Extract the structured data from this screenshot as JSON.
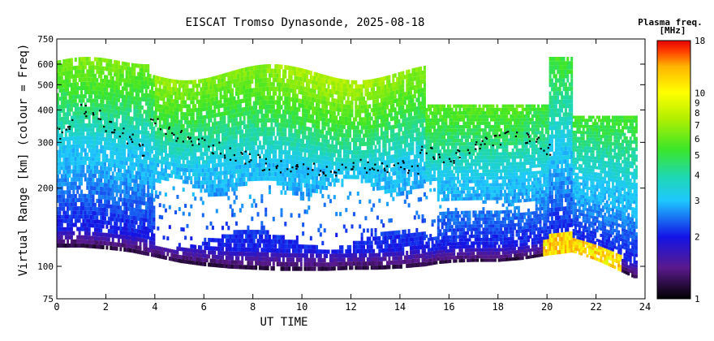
{
  "chart_data": {
    "type": "heatmap",
    "title": "EISCAT Tromso Dynasonde, 2025-08-18",
    "xlabel": "UT TIME",
    "ylabel": "Virtual Range [km] (colour = Freq)",
    "x_ticks": [
      "0",
      "2",
      "4",
      "6",
      "8",
      "10",
      "12",
      "14",
      "16",
      "18",
      "20",
      "22",
      "24"
    ],
    "xlim": [
      0,
      24
    ],
    "y_scale": "log",
    "y_ticks": [
      "75",
      "100",
      "200",
      "300",
      "400",
      "500",
      "600",
      "750"
    ],
    "ylim": [
      75,
      750
    ],
    "colorbar": {
      "title_line1": "Plasma freq.",
      "title_line2": "[MHz]",
      "scale": "log",
      "range": [
        1,
        18
      ],
      "ticks": [
        "1",
        "2",
        "3",
        "4",
        "5",
        "6",
        "7",
        "8",
        "9",
        "10",
        "18"
      ],
      "colors": [
        "#000000",
        "#5a1a8c",
        "#1414e6",
        "#1ec8ff",
        "#1ed7b4",
        "#3ce628",
        "#b4f000",
        "#ffff00",
        "#ffb400",
        "#ff3c00",
        "#e60000"
      ]
    },
    "traces": {
      "F_layer_virtual_height_km": {
        "x": [
          0,
          0.5,
          1,
          1.5,
          2,
          2.5,
          3,
          3.5,
          4,
          4.5,
          5,
          5.5,
          6,
          6.5,
          7,
          7.5,
          8,
          8.5,
          9,
          9.5,
          10,
          10.5,
          11,
          11.5,
          12,
          12.5,
          13,
          13.5,
          14,
          14.5,
          15,
          15.5,
          16,
          16.5,
          17,
          17.5,
          18,
          18.5,
          19,
          19.5,
          20
        ],
        "y": [
          330,
          360,
          400,
          390,
          350,
          330,
          310,
          280,
          360,
          340,
          320,
          310,
          300,
          290,
          275,
          265,
          260,
          250,
          245,
          245,
          240,
          238,
          235,
          238,
          240,
          245,
          250,
          245,
          242,
          240,
          290,
          275,
          265,
          280,
          290,
          300,
          310,
          320,
          310,
          300,
          280
        ]
      },
      "E_layer_min_height_km": {
        "x": [
          0,
          1,
          2,
          3,
          4,
          5,
          6,
          7,
          8,
          9,
          10,
          11,
          12,
          13,
          14,
          15,
          15.5,
          16,
          17,
          18,
          19,
          20,
          21,
          22,
          23,
          23.5
        ],
        "y": [
          118,
          118,
          116,
          113,
          108,
          103,
          100,
          98,
          97,
          96,
          96,
          96,
          97,
          97,
          98,
          100,
          102,
          103,
          104,
          104,
          106,
          110,
          113,
          105,
          95,
          90
        ]
      }
    }
  }
}
